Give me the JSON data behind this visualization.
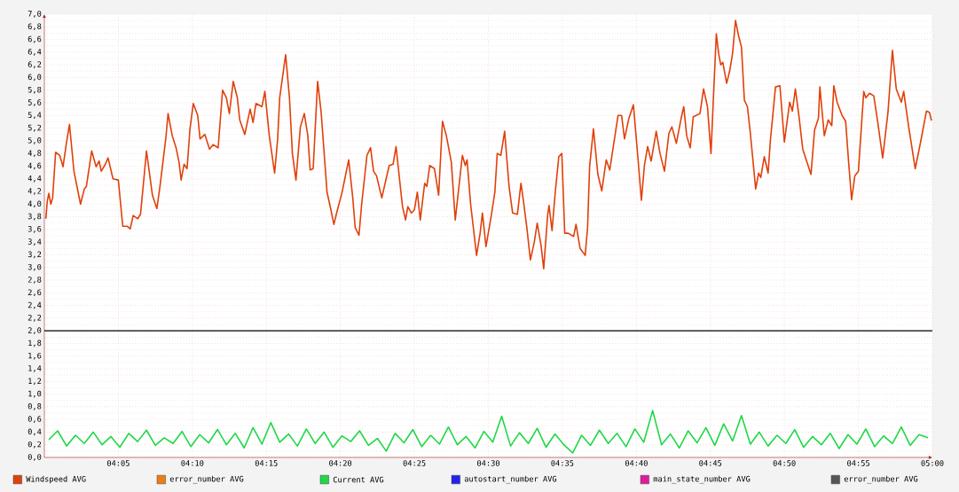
{
  "chart_data": {
    "type": "line",
    "xlim": [
      4.0,
      5.0
    ],
    "xticks": [
      {
        "value": 4.0833,
        "label": "04:05"
      },
      {
        "value": 4.1667,
        "label": "04:10"
      },
      {
        "value": 4.25,
        "label": "04:15"
      },
      {
        "value": 4.3333,
        "label": "04:20"
      },
      {
        "value": 4.4167,
        "label": "04:25"
      },
      {
        "value": 4.5,
        "label": "04:30"
      },
      {
        "value": 4.5833,
        "label": "04:35"
      },
      {
        "value": 4.6667,
        "label": "04:40"
      },
      {
        "value": 4.75,
        "label": "04:45"
      },
      {
        "value": 4.8333,
        "label": "04:50"
      },
      {
        "value": 4.9167,
        "label": "04:55"
      },
      {
        "value": 5.0,
        "label": "05:00"
      }
    ],
    "ylim": [
      0,
      7
    ],
    "yticks": [
      {
        "value": 0,
        "label": "0,0"
      },
      {
        "value": 0.2,
        "label": "0,2"
      },
      {
        "value": 0.4,
        "label": "0,4"
      },
      {
        "value": 0.6,
        "label": "0,6"
      },
      {
        "value": 0.8,
        "label": "0,8"
      },
      {
        "value": 1.0,
        "label": "1,0"
      },
      {
        "value": 1.2,
        "label": "1,2"
      },
      {
        "value": 1.4,
        "label": "1,4"
      },
      {
        "value": 1.6,
        "label": "1,6"
      },
      {
        "value": 1.8,
        "label": "1,8"
      },
      {
        "value": 2.0,
        "label": "2,0"
      },
      {
        "value": 2.2,
        "label": "2,2"
      },
      {
        "value": 2.4,
        "label": "2,4"
      },
      {
        "value": 2.6,
        "label": "2,6"
      },
      {
        "value": 2.8,
        "label": "2,8"
      },
      {
        "value": 3.0,
        "label": "3,0"
      },
      {
        "value": 3.2,
        "label": "3,2"
      },
      {
        "value": 3.4,
        "label": "3,4"
      },
      {
        "value": 3.6,
        "label": "3,6"
      },
      {
        "value": 3.8,
        "label": "3,8"
      },
      {
        "value": 4.0,
        "label": "4,0"
      },
      {
        "value": 4.2,
        "label": "4,2"
      },
      {
        "value": 4.4,
        "label": "4,4"
      },
      {
        "value": 4.6,
        "label": "4,6"
      },
      {
        "value": 4.8,
        "label": "4,8"
      },
      {
        "value": 5.0,
        "label": "5,0"
      },
      {
        "value": 5.2,
        "label": "5,2"
      },
      {
        "value": 5.4,
        "label": "5,4"
      },
      {
        "value": 5.6,
        "label": "5,6"
      },
      {
        "value": 5.8,
        "label": "5,8"
      },
      {
        "value": 6.0,
        "label": "6,0"
      },
      {
        "value": 6.2,
        "label": "6,2"
      },
      {
        "value": 6.4,
        "label": "6,4"
      },
      {
        "value": 6.6,
        "label": "6,6"
      },
      {
        "value": 6.8,
        "label": "6,8"
      },
      {
        "value": 7.0,
        "label": "7,0"
      }
    ],
    "grid": true,
    "legend": "bottom",
    "ref_lines": [
      {
        "axis": "y",
        "value": 2.0,
        "color": "#000000"
      }
    ],
    "series": [
      {
        "name": "Windspeed AVG",
        "color": "#e0400a",
        "x": [
          4.0017,
          4.0033,
          4.005,
          4.0073,
          4.0093,
          4.0127,
          4.0173,
          4.021,
          4.025,
          4.0283,
          4.0333,
          4.0407,
          4.045,
          4.0473,
          4.0533,
          4.0583,
          4.0617,
          4.064,
          4.0683,
          4.0717,
          4.0773,
          4.0833,
          4.0883,
          4.0933,
          4.0967,
          4.1,
          4.105,
          4.1083,
          4.115,
          4.1217,
          4.1267,
          4.13,
          4.1367,
          4.1393,
          4.144,
          4.1483,
          4.1517,
          4.154,
          4.1573,
          4.1607,
          4.164,
          4.1677,
          4.1727,
          4.1753,
          4.1807,
          4.186,
          4.19,
          4.1957,
          4.2007,
          4.205,
          4.2083,
          4.2127,
          4.2173,
          4.22,
          4.2257,
          4.2317,
          4.235,
          4.2383,
          4.245,
          4.2483,
          4.2533,
          4.2593,
          4.2627,
          4.265,
          4.2717,
          4.276,
          4.2793,
          4.2833,
          4.2883,
          4.2927,
          4.2967,
          4.2993,
          4.3027,
          4.3077,
          4.3117,
          4.3183,
          4.3227,
          4.326,
          4.33,
          4.335,
          4.3427,
          4.3473,
          4.35,
          4.3543,
          4.3573,
          4.3633,
          4.3673,
          4.3707,
          4.374,
          4.38,
          4.3883,
          4.3927,
          4.396,
          4.4033,
          4.4067,
          4.4093,
          4.4133,
          4.4167,
          4.42,
          4.4233,
          4.4283,
          4.4307,
          4.434,
          4.4393,
          4.444,
          4.4483,
          4.4527,
          4.4583,
          4.4627,
          4.4707,
          4.474,
          4.476,
          4.48,
          4.4867,
          4.4907,
          4.4933,
          4.4973,
          4.5033,
          4.5073,
          4.51,
          4.514,
          4.5183,
          4.5233,
          4.5273,
          4.5327,
          4.5367,
          4.5393,
          4.5433,
          4.5473,
          4.5517,
          4.555,
          4.5593,
          4.5623,
          4.5667,
          4.5683,
          4.5717,
          4.575,
          4.5793,
          4.5827,
          4.586,
          4.59,
          4.596,
          4.5987,
          4.6033,
          4.609,
          4.6117,
          4.614,
          4.6183,
          4.6233,
          4.6277,
          4.6327,
          4.6367,
          4.646,
          4.65,
          4.6533,
          4.6583,
          4.6633,
          4.6683,
          4.6723,
          4.6757,
          4.6793,
          4.6833,
          4.689,
          4.6933,
          4.6983,
          4.7033,
          4.7067,
          4.7117,
          4.7167,
          4.72,
          4.7233,
          4.7273,
          4.7307,
          4.7383,
          4.7423,
          4.7467,
          4.7507,
          4.7533,
          4.7567,
          4.7593,
          4.7617,
          4.764,
          4.7683,
          4.7717,
          4.775,
          4.7783,
          4.7817,
          4.785,
          4.7883,
          4.7917,
          4.795,
          4.801,
          4.8043,
          4.8067,
          4.8107,
          4.815,
          4.8177,
          4.82,
          4.8233,
          4.8283,
          4.8333,
          4.8393,
          4.8423,
          4.8457,
          4.85,
          4.854,
          4.8633,
          4.8673,
          4.8717,
          4.8733,
          4.8783,
          4.8827,
          4.8867,
          4.889,
          4.8927,
          4.8983,
          4.9023,
          4.9057,
          4.909,
          4.9127,
          4.9167,
          4.9227,
          4.925,
          4.9293,
          4.934,
          4.9383,
          4.944,
          4.95,
          4.955,
          4.9593,
          4.965,
          4.9677,
          4.9733,
          4.9807,
          4.9867,
          4.9933,
          4.9967,
          4.999
        ],
        "values": [
          3.77,
          4.05,
          4.17,
          4.0,
          4.1,
          4.82,
          4.77,
          4.59,
          4.98,
          5.26,
          4.52,
          4.0,
          4.24,
          4.28,
          4.84,
          4.59,
          4.68,
          4.52,
          4.62,
          4.73,
          4.4,
          4.38,
          3.65,
          3.65,
          3.61,
          3.82,
          3.77,
          3.84,
          4.84,
          4.14,
          3.93,
          4.26,
          5.03,
          5.43,
          5.08,
          4.89,
          4.66,
          4.38,
          4.63,
          4.56,
          5.19,
          5.59,
          5.4,
          5.03,
          5.1,
          4.87,
          4.94,
          4.89,
          5.8,
          5.68,
          5.43,
          5.94,
          5.68,
          5.33,
          5.1,
          5.5,
          5.29,
          5.59,
          5.54,
          5.78,
          5.08,
          4.49,
          5.03,
          5.68,
          6.36,
          5.68,
          4.8,
          4.38,
          5.22,
          5.43,
          5.08,
          4.54,
          4.56,
          5.94,
          5.45,
          4.19,
          3.91,
          3.68,
          3.91,
          4.17,
          4.7,
          4.1,
          3.63,
          3.51,
          4.0,
          4.77,
          4.89,
          4.52,
          4.45,
          4.1,
          4.61,
          4.63,
          4.91,
          3.96,
          3.75,
          3.96,
          3.86,
          3.91,
          4.19,
          3.75,
          4.33,
          4.28,
          4.61,
          4.56,
          4.14,
          5.31,
          5.08,
          4.66,
          3.75,
          4.77,
          4.61,
          4.7,
          4.0,
          3.19,
          3.54,
          3.86,
          3.33,
          3.82,
          4.19,
          4.8,
          4.77,
          5.15,
          4.28,
          3.86,
          3.84,
          4.33,
          4.07,
          3.63,
          3.12,
          3.4,
          3.7,
          3.35,
          2.98,
          3.82,
          3.98,
          3.58,
          4.14,
          4.75,
          4.8,
          3.54,
          3.54,
          3.49,
          3.68,
          3.3,
          3.19,
          3.63,
          4.59,
          5.19,
          4.47,
          4.21,
          4.7,
          4.54,
          5.4,
          5.4,
          5.03,
          5.36,
          5.57,
          4.75,
          4.06,
          4.61,
          4.91,
          4.68,
          5.15,
          4.8,
          4.52,
          5.12,
          5.22,
          4.96,
          5.33,
          5.54,
          5.08,
          4.89,
          5.38,
          5.43,
          5.82,
          5.54,
          4.8,
          5.64,
          6.69,
          6.38,
          6.2,
          6.24,
          5.91,
          6.1,
          6.38,
          6.9,
          6.66,
          6.48,
          5.64,
          5.54,
          5.12,
          4.24,
          4.49,
          4.42,
          4.75,
          4.49,
          5.03,
          5.36,
          5.85,
          5.87,
          4.98,
          5.61,
          5.47,
          5.82,
          5.36,
          4.87,
          4.47,
          5.17,
          5.36,
          5.85,
          5.08,
          5.33,
          5.24,
          5.87,
          5.61,
          5.4,
          5.31,
          4.66,
          4.07,
          4.45,
          4.52,
          5.78,
          5.68,
          5.75,
          5.71,
          5.31,
          4.73,
          5.45,
          6.43,
          5.82,
          5.61,
          5.78,
          5.22,
          4.56,
          4.98,
          5.47,
          5.45,
          5.32
        ]
      },
      {
        "name": "error_number AVG",
        "color": "#ec7c16"
      },
      {
        "name": "Current AVG",
        "color": "#1ed846",
        "x": [
          4.005,
          4.015,
          4.025,
          4.035,
          4.045,
          4.055,
          4.065,
          4.075,
          4.085,
          4.095,
          4.105,
          4.115,
          4.125,
          4.135,
          4.145,
          4.155,
          4.165,
          4.175,
          4.185,
          4.195,
          4.205,
          4.215,
          4.225,
          4.235,
          4.245,
          4.255,
          4.265,
          4.275,
          4.285,
          4.295,
          4.305,
          4.315,
          4.325,
          4.335,
          4.345,
          4.355,
          4.365,
          4.375,
          4.385,
          4.395,
          4.405,
          4.415,
          4.425,
          4.435,
          4.445,
          4.455,
          4.465,
          4.475,
          4.485,
          4.495,
          4.505,
          4.515,
          4.525,
          4.535,
          4.545,
          4.555,
          4.565,
          4.575,
          4.585,
          4.595,
          4.605,
          4.615,
          4.625,
          4.635,
          4.645,
          4.655,
          4.665,
          4.675,
          4.685,
          4.695,
          4.705,
          4.715,
          4.725,
          4.735,
          4.745,
          4.755,
          4.765,
          4.775,
          4.785,
          4.795,
          4.805,
          4.815,
          4.825,
          4.835,
          4.845,
          4.855,
          4.865,
          4.875,
          4.885,
          4.895,
          4.905,
          4.915,
          4.925,
          4.935,
          4.945,
          4.955,
          4.965,
          4.975,
          4.985,
          4.995
        ],
        "values": [
          0.28,
          0.42,
          0.18,
          0.35,
          0.22,
          0.4,
          0.2,
          0.33,
          0.16,
          0.38,
          0.25,
          0.43,
          0.19,
          0.31,
          0.22,
          0.41,
          0.17,
          0.36,
          0.23,
          0.44,
          0.2,
          0.38,
          0.15,
          0.47,
          0.21,
          0.55,
          0.24,
          0.37,
          0.18,
          0.45,
          0.22,
          0.4,
          0.16,
          0.34,
          0.25,
          0.42,
          0.19,
          0.3,
          0.1,
          0.38,
          0.23,
          0.44,
          0.17,
          0.35,
          0.21,
          0.48,
          0.2,
          0.33,
          0.15,
          0.41,
          0.24,
          0.65,
          0.18,
          0.39,
          0.22,
          0.46,
          0.16,
          0.37,
          0.2,
          0.07,
          0.35,
          0.19,
          0.43,
          0.22,
          0.38,
          0.17,
          0.45,
          0.24,
          0.74,
          0.2,
          0.37,
          0.15,
          0.42,
          0.23,
          0.47,
          0.19,
          0.53,
          0.26,
          0.66,
          0.21,
          0.4,
          0.18,
          0.35,
          0.22,
          0.44,
          0.16,
          0.33,
          0.2,
          0.38,
          0.14,
          0.36,
          0.21,
          0.45,
          0.17,
          0.34,
          0.22,
          0.48,
          0.19,
          0.36,
          0.31
        ]
      },
      {
        "name": "autostart_number AVG",
        "color": "#2222ee"
      },
      {
        "name": "main_state_number AVG",
        "color": "#e01c9c"
      },
      {
        "name": "error_number AVG",
        "color": "#555555"
      }
    ]
  }
}
